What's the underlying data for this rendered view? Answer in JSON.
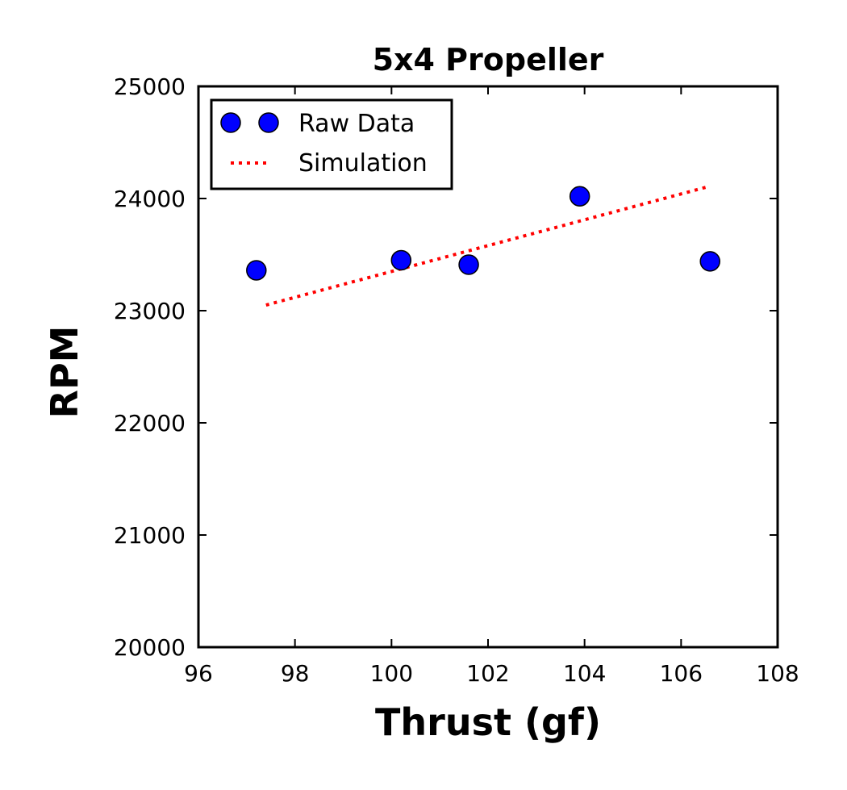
{
  "chart_data": {
    "type": "scatter",
    "title": "5x4 Propeller",
    "xlabel": "Thrust (gf)",
    "ylabel": "RPM",
    "xlim": [
      96,
      108
    ],
    "ylim": [
      20000,
      25000
    ],
    "xticks": [
      96,
      98,
      100,
      102,
      104,
      106,
      108
    ],
    "xtick_labels": [
      "96",
      "98",
      "100",
      "102",
      "104",
      "106",
      "108"
    ],
    "yticks": [
      20000,
      21000,
      22000,
      23000,
      24000,
      25000
    ],
    "ytick_labels": [
      "20000",
      "21000",
      "22000",
      "23000",
      "24000",
      "25000"
    ],
    "grid": false,
    "legend_position": "top-left",
    "series": [
      {
        "name": "Raw Data",
        "kind": "scatter",
        "color": "#0000ff",
        "x": [
          97.2,
          100.2,
          101.6,
          103.9,
          106.6
        ],
        "y": [
          23360,
          23450,
          23410,
          24020,
          23440
        ]
      },
      {
        "name": "Simulation",
        "kind": "line",
        "style": "dotted",
        "color": "#ff0000",
        "x": [
          97.4,
          106.6
        ],
        "y": [
          23050,
          24110
        ]
      }
    ]
  }
}
